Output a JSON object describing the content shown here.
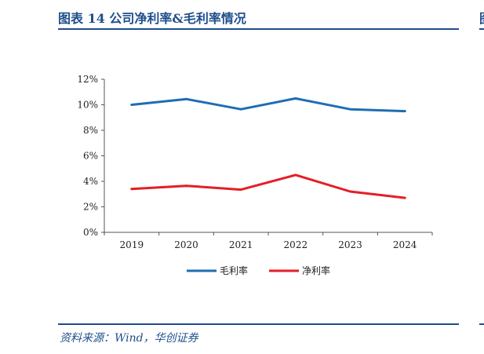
{
  "header": {
    "title": "图表 14   公司净利率&毛利率情况",
    "next_title_glyph": "图"
  },
  "source": "资料来源：Wind，华创证券",
  "colors": {
    "heading": "#1f4e8c",
    "gross_margin": "#1f6db5",
    "net_margin": "#e41e26"
  },
  "chart_data": {
    "type": "line",
    "categories": [
      "2019",
      "2020",
      "2021",
      "2022",
      "2023",
      "2024"
    ],
    "series": [
      {
        "name": "毛利率",
        "values": [
          10.0,
          10.45,
          9.65,
          10.5,
          9.65,
          9.5
        ],
        "color": "#1f6db5"
      },
      {
        "name": "净利率",
        "values": [
          3.4,
          3.65,
          3.35,
          4.5,
          3.2,
          2.7
        ],
        "color": "#e41e26"
      }
    ],
    "yticks": [
      "0%",
      "2%",
      "4%",
      "6%",
      "8%",
      "10%",
      "12%"
    ],
    "ylim": [
      0,
      12
    ],
    "grid": false,
    "legend_position": "bottom-center"
  }
}
